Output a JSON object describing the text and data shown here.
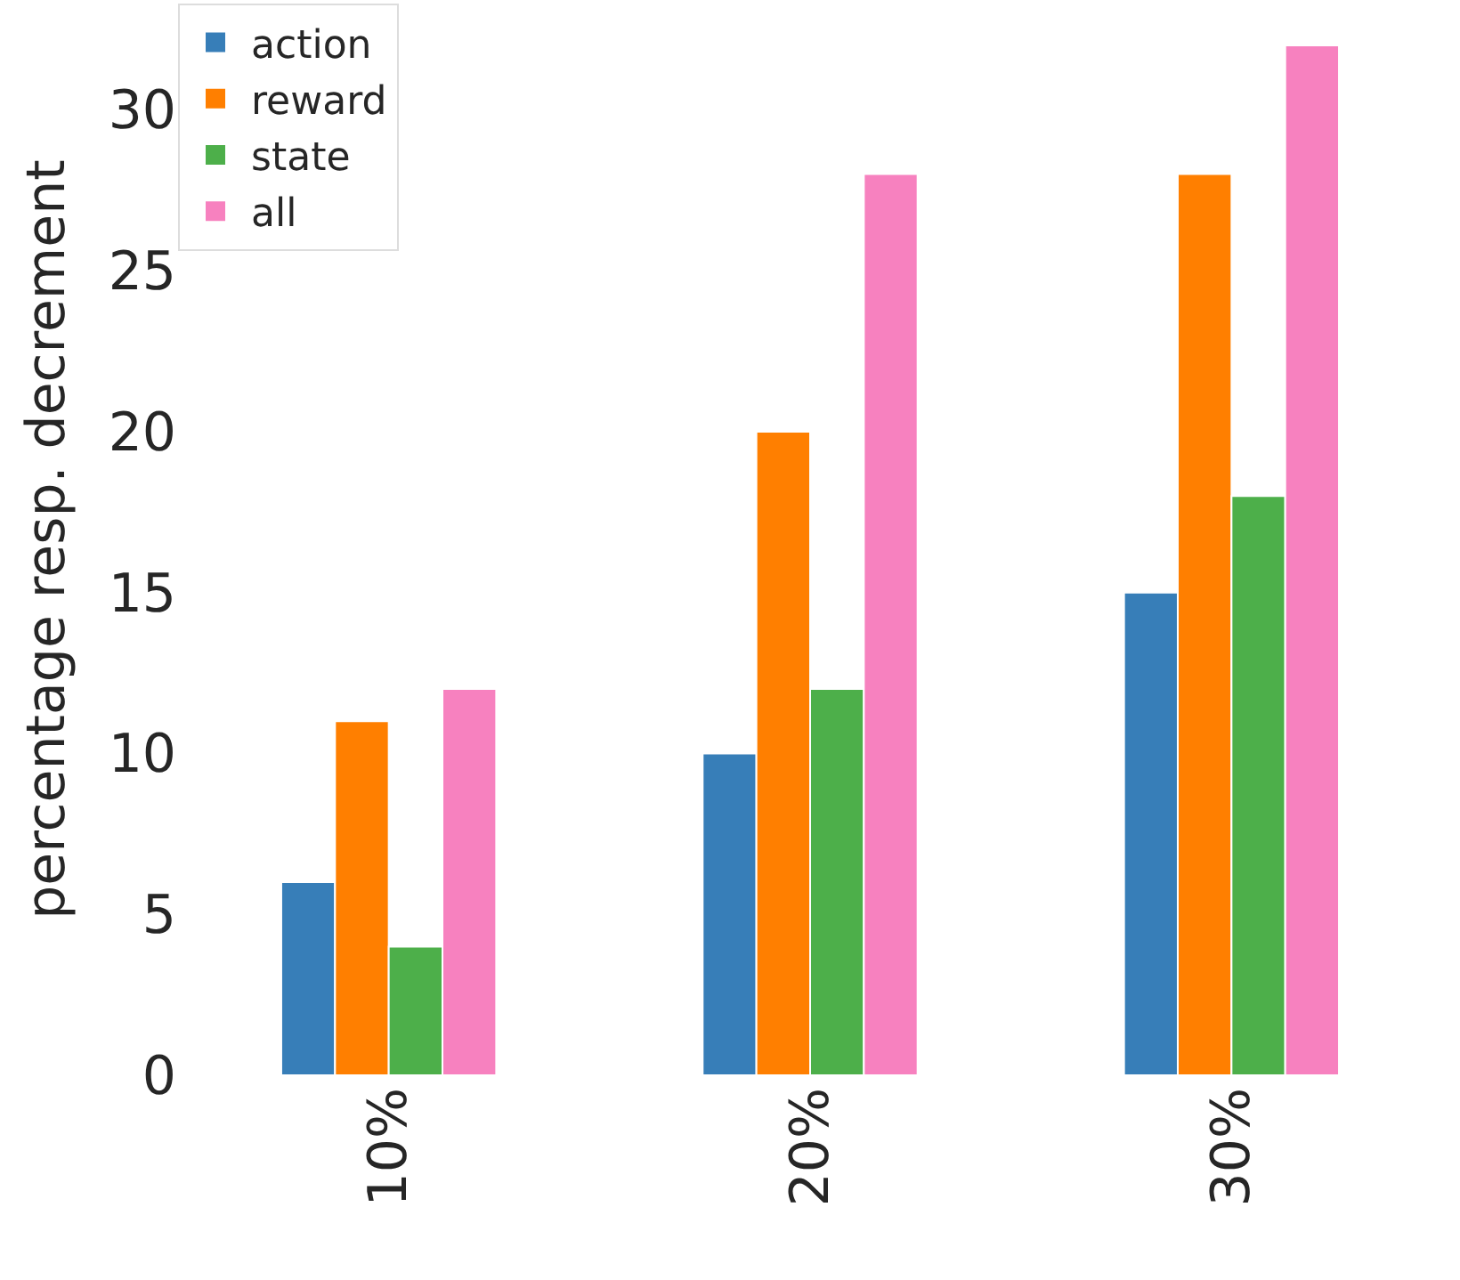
{
  "chart_data": {
    "type": "bar",
    "ylabel": "percentage resp. decrement",
    "categories": [
      "10%",
      "20%",
      "30%"
    ],
    "series": [
      {
        "name": "action",
        "color": "#377eb8",
        "values": [
          6,
          10,
          15
        ]
      },
      {
        "name": "reward",
        "color": "#ff7f00",
        "values": [
          11,
          20,
          28
        ]
      },
      {
        "name": "state",
        "color": "#4daf4a",
        "values": [
          4,
          12,
          18
        ]
      },
      {
        "name": "all",
        "color": "#f781bf",
        "values": [
          12,
          28,
          32
        ]
      }
    ],
    "ylim": [
      0,
      33.3
    ],
    "yticks": [
      0,
      5,
      10,
      15,
      20,
      25,
      30
    ],
    "legend": "top left"
  }
}
